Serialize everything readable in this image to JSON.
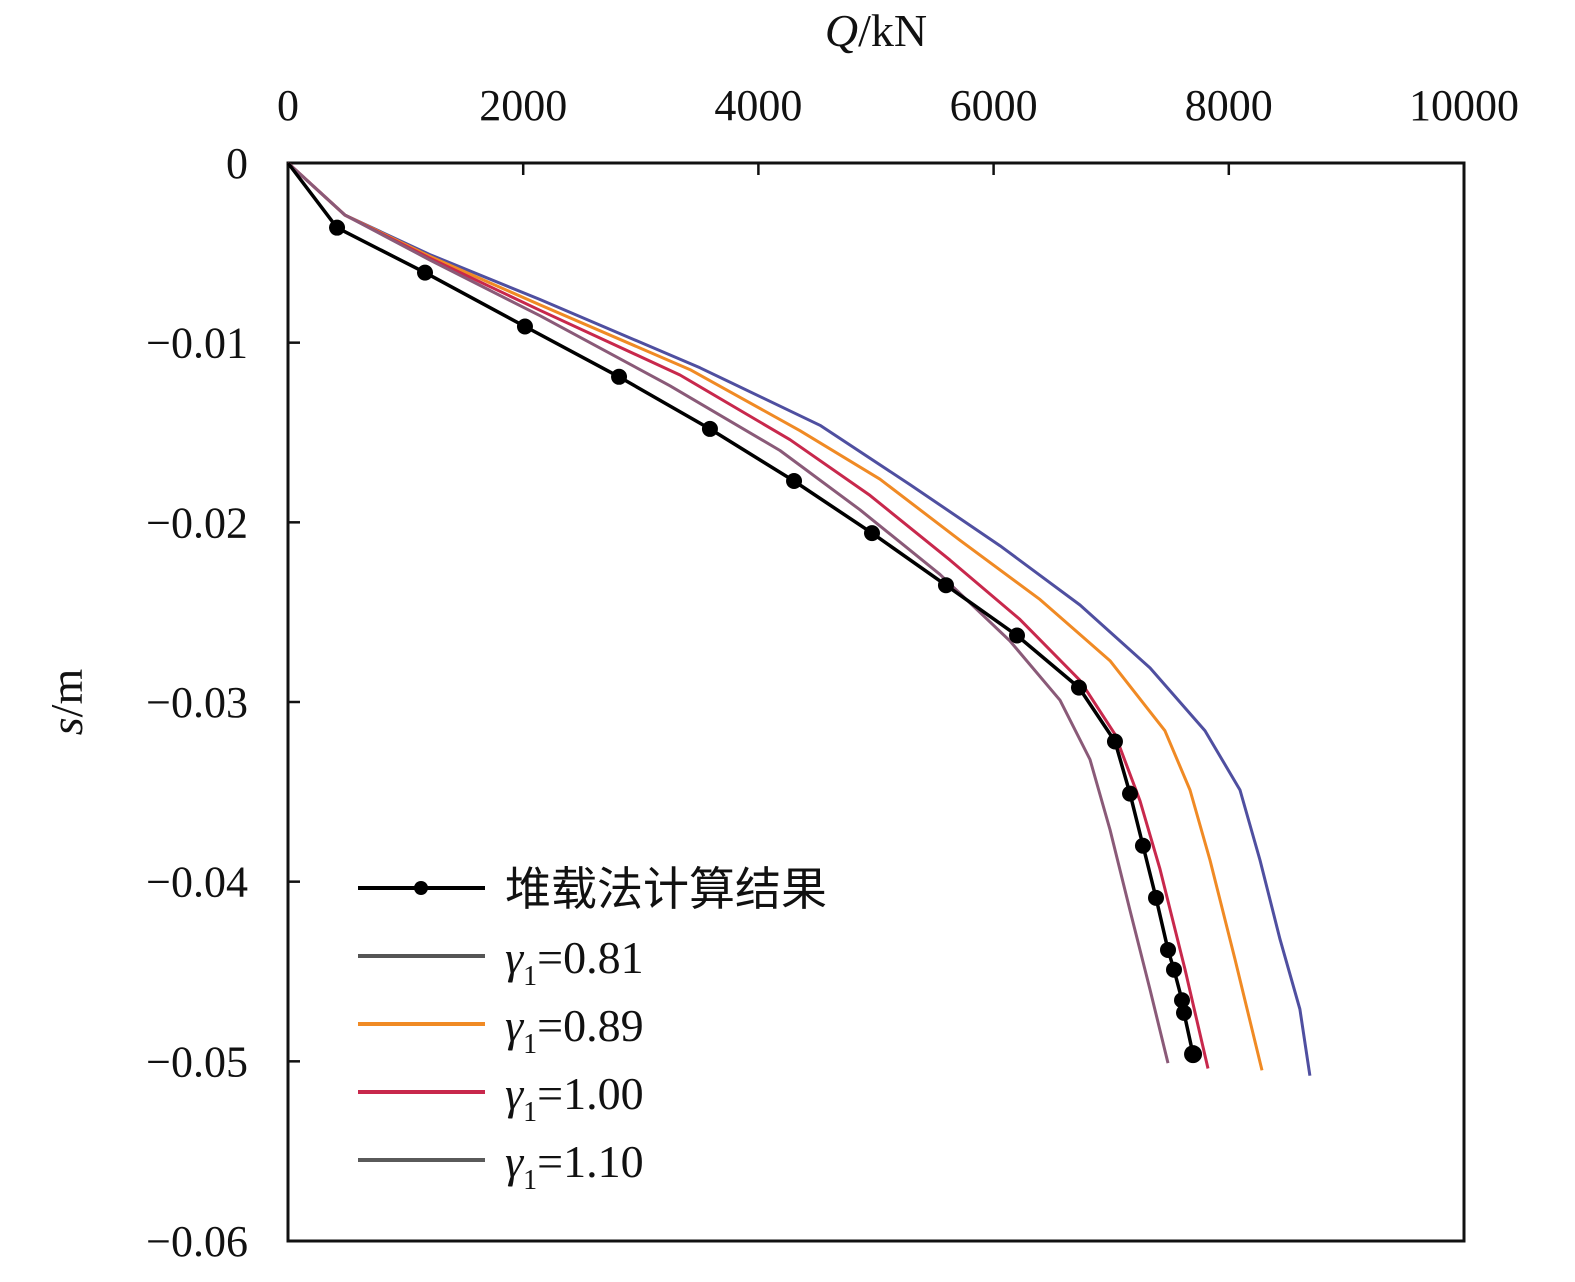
{
  "chart_data": {
    "type": "line",
    "title": "",
    "xlabel": "Q/kN",
    "xlabel_italic": "Q",
    "xlabel_unit": "/kN",
    "ylabel": "s/m",
    "ylabel_italic": "s",
    "ylabel_unit": "/m",
    "xlim": [
      0,
      10000
    ],
    "ylim": [
      -0.06,
      0
    ],
    "xticks": [
      "0",
      "2000",
      "4000",
      "6000",
      "8000",
      "10000"
    ],
    "xtick_values": [
      0,
      2000,
      4000,
      6000,
      8000,
      10000
    ],
    "yticks": [
      "0",
      "−0.01",
      "−0.02",
      "−0.03",
      "−0.04",
      "−0.05",
      "−0.06"
    ],
    "ytick_values": [
      0,
      -0.01,
      -0.02,
      -0.03,
      -0.04,
      -0.05,
      -0.06
    ],
    "x_axis_position": "top",
    "grid": false,
    "legend_position": "bottom-left",
    "series": [
      {
        "name": "堆载法计算结果",
        "color": "#000000",
        "markers": true,
        "x": [
          0,
          417,
          1165,
          2015,
          2815,
          3588,
          4303,
          4966,
          5595,
          6199,
          6726,
          7032,
          7160,
          7270,
          7381,
          7483,
          7534,
          7602,
          7619,
          7696
        ],
        "y": [
          0,
          -0.0036,
          -0.0061,
          -0.0091,
          -0.0119,
          -0.0148,
          -0.0177,
          -0.0206,
          -0.0235,
          -0.0263,
          -0.0292,
          -0.0322,
          -0.0351,
          -0.038,
          -0.0409,
          -0.0438,
          -0.0449,
          -0.0466,
          -0.0473,
          -0.0496
        ]
      },
      {
        "name": "γ1=0.81",
        "label_sym": "γ",
        "label_sub": "1",
        "label_val": "=0.81",
        "color": "#4f4fa0",
        "legend_color": "#555555",
        "markers": false,
        "x": [
          0,
          485,
          1207,
          2143,
          3503,
          4524,
          5289,
          6054,
          6735,
          7330,
          7798,
          8095,
          8265,
          8435,
          8605,
          8690
        ],
        "y": [
          0,
          -0.0029,
          -0.0051,
          -0.0076,
          -0.0114,
          -0.0146,
          -0.0179,
          -0.0213,
          -0.0246,
          -0.0281,
          -0.0316,
          -0.0349,
          -0.0388,
          -0.0432,
          -0.0471,
          -0.0508
        ]
      },
      {
        "name": "γ1=0.89",
        "label_sym": "γ",
        "label_sub": "1",
        "label_val": "=0.89",
        "color": "#f08a24",
        "legend_color": "#f08a24",
        "markers": false,
        "x": [
          0,
          485,
          1207,
          2143,
          3418,
          4354,
          5034,
          5714,
          6395,
          6990,
          7457,
          7670,
          7840,
          8052,
          8282
        ],
        "y": [
          0,
          -0.0029,
          -0.0052,
          -0.0079,
          -0.0115,
          -0.0149,
          -0.0176,
          -0.021,
          -0.0243,
          -0.0277,
          -0.0316,
          -0.0349,
          -0.0388,
          -0.0443,
          -0.0505
        ]
      },
      {
        "name": "γ1=1.00",
        "label_sym": "γ",
        "label_sub": "1",
        "label_val": "=1.00",
        "color": "#c8284c",
        "legend_color": "#c8284c",
        "markers": false,
        "x": [
          0,
          485,
          1207,
          2143,
          3333,
          4269,
          4949,
          5629,
          6224,
          6735,
          7032,
          7245,
          7415,
          7628,
          7823
        ],
        "y": [
          0,
          -0.0029,
          -0.0053,
          -0.0082,
          -0.0118,
          -0.0154,
          -0.0185,
          -0.0221,
          -0.0254,
          -0.0288,
          -0.0318,
          -0.0355,
          -0.0393,
          -0.0449,
          -0.0504
        ]
      },
      {
        "name": "γ1=1.10",
        "label_sym": "γ",
        "label_sub": "1",
        "label_val": "=1.10",
        "color": "#8a5a78",
        "legend_color": "#5a5a5a",
        "markers": false,
        "x": [
          0,
          485,
          1207,
          2143,
          3248,
          4184,
          4864,
          5544,
          6139,
          6565,
          6820,
          6990,
          7160,
          7330,
          7483
        ],
        "y": [
          0,
          -0.0029,
          -0.0054,
          -0.0085,
          -0.0124,
          -0.016,
          -0.0193,
          -0.0229,
          -0.0266,
          -0.0299,
          -0.0332,
          -0.0371,
          -0.0416,
          -0.046,
          -0.0501
        ]
      }
    ]
  }
}
